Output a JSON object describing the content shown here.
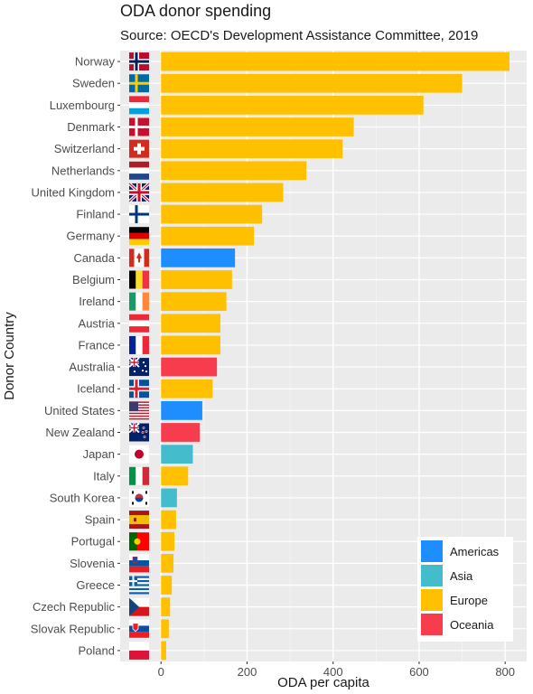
{
  "chart_data": {
    "type": "bar",
    "orientation": "horizontal",
    "title": "ODA donor spending",
    "subtitle": "Source: OECD's Development Assistance Committee, 2019",
    "xlabel": "ODA per capita",
    "ylabel": "Donor Country",
    "xlim": [
      -95,
      850
    ],
    "xticks": [
      0,
      200,
      400,
      600,
      800
    ],
    "grid": true,
    "legend_position": "bottom-right",
    "legend": [
      {
        "name": "Americas",
        "color": "#1e8eff"
      },
      {
        "name": "Asia",
        "color": "#44bccc"
      },
      {
        "name": "Europe",
        "color": "#ffc000"
      },
      {
        "name": "Oceania",
        "color": "#f73c4d"
      }
    ],
    "bars": [
      {
        "country": "Norway",
        "value": 810,
        "region": "Europe",
        "flag": "norway-flag"
      },
      {
        "country": "Sweden",
        "value": 700,
        "region": "Europe",
        "flag": "sweden-flag"
      },
      {
        "country": "Luxembourg",
        "value": 610,
        "region": "Europe",
        "flag": "luxembourg-flag"
      },
      {
        "country": "Denmark",
        "value": 448,
        "region": "Europe",
        "flag": "denmark-flag"
      },
      {
        "country": "Switzerland",
        "value": 422,
        "region": "Europe",
        "flag": "switzerland-flag"
      },
      {
        "country": "Netherlands",
        "value": 338,
        "region": "Europe",
        "flag": "netherlands-flag"
      },
      {
        "country": "United Kingdom",
        "value": 284,
        "region": "Europe",
        "flag": "united-kingdom-flag"
      },
      {
        "country": "Finland",
        "value": 235,
        "region": "Europe",
        "flag": "finland-flag"
      },
      {
        "country": "Germany",
        "value": 216,
        "region": "Europe",
        "flag": "germany-flag"
      },
      {
        "country": "Canada",
        "value": 172,
        "region": "Americas",
        "flag": "canada-flag"
      },
      {
        "country": "Belgium",
        "value": 165,
        "region": "Europe",
        "flag": "belgium-flag"
      },
      {
        "country": "Ireland",
        "value": 152,
        "region": "Europe",
        "flag": "ireland-flag"
      },
      {
        "country": "Austria",
        "value": 138,
        "region": "Europe",
        "flag": "austria-flag"
      },
      {
        "country": "France",
        "value": 138,
        "region": "Europe",
        "flag": "france-flag"
      },
      {
        "country": "Australia",
        "value": 130,
        "region": "Oceania",
        "flag": "australia-flag"
      },
      {
        "country": "Iceland",
        "value": 120,
        "region": "Europe",
        "flag": "iceland-flag"
      },
      {
        "country": "United States",
        "value": 96,
        "region": "Americas",
        "flag": "united-states-flag"
      },
      {
        "country": "New Zealand",
        "value": 90,
        "region": "Oceania",
        "flag": "new-zealand-flag"
      },
      {
        "country": "Japan",
        "value": 74,
        "region": "Asia",
        "flag": "japan-flag"
      },
      {
        "country": "Italy",
        "value": 63,
        "region": "Europe",
        "flag": "italy-flag"
      },
      {
        "country": "South Korea",
        "value": 37,
        "region": "Asia",
        "flag": "south-korea-flag"
      },
      {
        "country": "Spain",
        "value": 35,
        "region": "Europe",
        "flag": "spain-flag"
      },
      {
        "country": "Portugal",
        "value": 31,
        "region": "Europe",
        "flag": "portugal-flag"
      },
      {
        "country": "Slovenia",
        "value": 29,
        "region": "Europe",
        "flag": "slovenia-flag"
      },
      {
        "country": "Greece",
        "value": 25,
        "region": "Europe",
        "flag": "greece-flag"
      },
      {
        "country": "Czech Republic",
        "value": 21,
        "region": "Europe",
        "flag": "czech-republic-flag"
      },
      {
        "country": "Slovak Republic",
        "value": 18,
        "region": "Europe",
        "flag": "slovak-republic-flag"
      },
      {
        "country": "Poland",
        "value": 12,
        "region": "Europe",
        "flag": "poland-flag"
      }
    ]
  }
}
